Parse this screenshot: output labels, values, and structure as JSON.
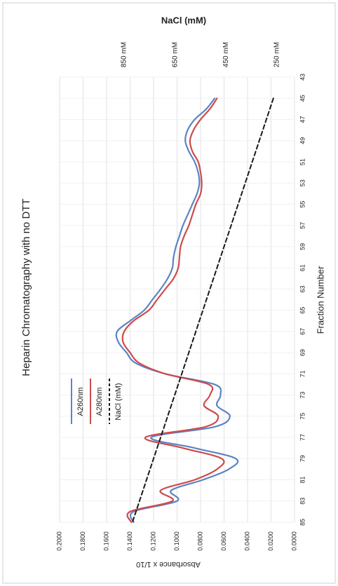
{
  "chart_data": {
    "type": "line",
    "title": "Heparin Chromatography with no DTT",
    "xlabel": "Fraction Number",
    "ylabel": "Absorbance x 1/10",
    "secondary_axis_label": "NaCl (mM)",
    "x_ticks": [
      "43",
      "45",
      "47",
      "49",
      "51",
      "53",
      "55",
      "57",
      "59",
      "61",
      "63",
      "65",
      "67",
      "69",
      "71",
      "73",
      "75",
      "77",
      "79",
      "81",
      "83",
      "85"
    ],
    "y_ticks": [
      "0.0000",
      "0.0200",
      "0.0400",
      "0.0600",
      "0.0800",
      "0.1000",
      "0.1200",
      "0.1400",
      "0.1600",
      "0.1800",
      "0.2000"
    ],
    "secondary_ticks": [
      "250 mM",
      "450 mM",
      "650 mM",
      "850 mM"
    ],
    "xlim": [
      43,
      85
    ],
    "ylim": [
      0,
      0.2
    ],
    "grid": true,
    "legend_position": "left",
    "series": [
      {
        "name": "A260nm",
        "color": "#5b84c4",
        "x": [
          45,
          46,
          47,
          48,
          49,
          50,
          51,
          52,
          53,
          54,
          55,
          56,
          57,
          58,
          59,
          60,
          61,
          62,
          63,
          64,
          65,
          66,
          67,
          68,
          69,
          70,
          71,
          72,
          73,
          74,
          75,
          76,
          77,
          78,
          79,
          80,
          81,
          82,
          83,
          84,
          85
        ],
        "y": [
          0.068,
          0.075,
          0.085,
          0.091,
          0.093,
          0.09,
          0.085,
          0.082,
          0.081,
          0.083,
          0.087,
          0.091,
          0.095,
          0.098,
          0.101,
          0.103,
          0.104,
          0.108,
          0.114,
          0.121,
          0.128,
          0.14,
          0.151,
          0.15,
          0.143,
          0.135,
          0.11,
          0.068,
          0.063,
          0.066,
          0.055,
          0.068,
          0.122,
          0.085,
          0.05,
          0.056,
          0.078,
          0.105,
          0.1,
          0.137,
          0.137
        ]
      },
      {
        "name": "A280nm",
        "color": "#cf4a4a",
        "x": [
          45,
          46,
          47,
          48,
          49,
          50,
          51,
          52,
          53,
          54,
          55,
          56,
          57,
          58,
          59,
          60,
          61,
          62,
          63,
          64,
          65,
          66,
          67,
          68,
          69,
          70,
          71,
          72,
          73,
          74,
          75,
          76,
          77,
          78,
          79,
          80,
          81,
          82,
          83,
          84,
          85
        ],
        "y": [
          0.066,
          0.072,
          0.08,
          0.086,
          0.089,
          0.087,
          0.082,
          0.08,
          0.079,
          0.08,
          0.084,
          0.087,
          0.09,
          0.094,
          0.097,
          0.098,
          0.099,
          0.103,
          0.11,
          0.117,
          0.124,
          0.137,
          0.145,
          0.146,
          0.14,
          0.132,
          0.11,
          0.073,
          0.072,
          0.077,
          0.065,
          0.076,
          0.127,
          0.095,
          0.062,
          0.066,
          0.085,
          0.114,
          0.104,
          0.14,
          0.139
        ]
      },
      {
        "name": "NaCl (mM)",
        "color": "#1a1a1a",
        "dashed": true,
        "x": [
          45,
          85
        ],
        "y": [
          0.018,
          0.138
        ]
      }
    ]
  }
}
